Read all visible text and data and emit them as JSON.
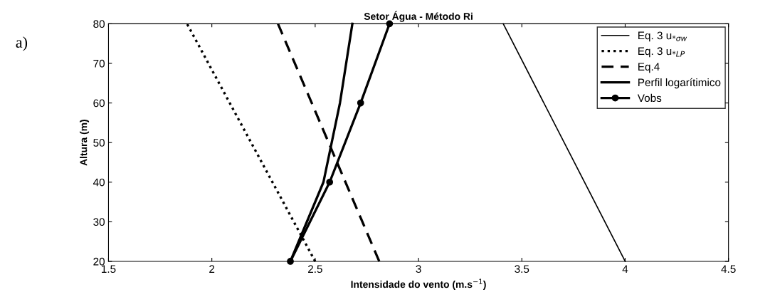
{
  "chart_data": {
    "type": "line",
    "title": "Setor Água - Método Ri",
    "xlabel": "Intensidade do vento (m.s$^{−1}$)",
    "ylabel": "Altura (m)",
    "annotations": [
      "a)"
    ],
    "xlim": [
      1.5,
      4.5
    ],
    "xticks": [
      1.5,
      2,
      2.5,
      3,
      3.5,
      4,
      4.5
    ],
    "ylim": [
      20,
      80
    ],
    "yticks": [
      20,
      30,
      40,
      50,
      60,
      70,
      80
    ],
    "grid": false,
    "legend": "top right",
    "series": [
      {
        "name": "Eq. 3 u$_{*σw}$",
        "color": "#000000",
        "line_style": "solid",
        "marker": "none",
        "x": [
          4.0,
          3.41
        ],
        "values": [
          20,
          80
        ]
      },
      {
        "name": "Eq. 3 u$_{*LP}$",
        "color": "#000000",
        "line_style": "dotted",
        "marker": "none",
        "x": [
          2.5,
          1.88
        ],
        "values": [
          20,
          80
        ]
      },
      {
        "name": "Eq.4",
        "color": "#000000",
        "line_style": "dashed",
        "marker": "none",
        "x": [
          2.81,
          2.32
        ],
        "values": [
          20,
          80
        ]
      },
      {
        "name": "Perfil logarítimico",
        "color": "#000000",
        "line_style": "solid",
        "marker": "none",
        "x": [
          2.38,
          2.54,
          2.62,
          2.68
        ],
        "values": [
          20,
          40,
          60,
          80
        ]
      },
      {
        "name": "Vobs",
        "color": "#000000",
        "line_style": "solid",
        "marker": "circle",
        "x": [
          2.38,
          2.57,
          2.72,
          2.86
        ],
        "values": [
          20,
          40,
          60,
          80
        ]
      }
    ]
  }
}
